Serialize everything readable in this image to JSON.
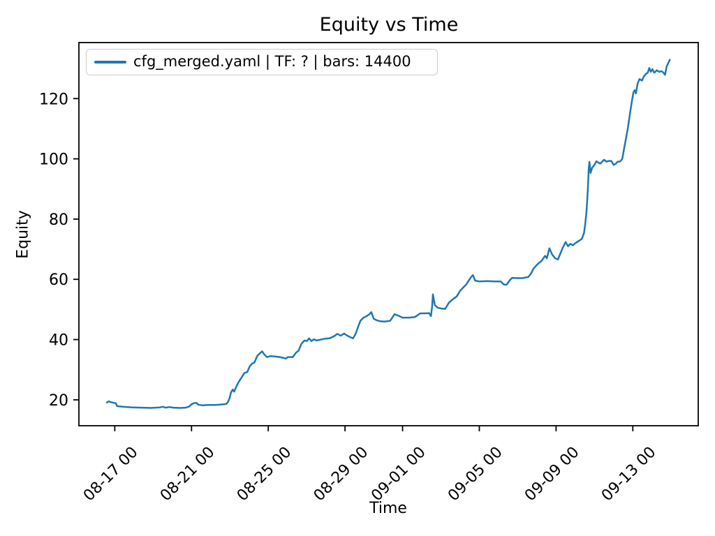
{
  "chart_data": {
    "type": "line",
    "title": "Equity vs Time",
    "xlabel": "Time",
    "ylabel": "Equity",
    "grid": false,
    "legend_position": "upper left",
    "x_unit": "days since 08-16 00:00, labels shown as MM-DD HH",
    "xlim": [
      -0.87,
      31.41
    ],
    "ylim": [
      11.4,
      138.6
    ],
    "yticks": [
      20,
      40,
      60,
      80,
      100,
      120
    ],
    "xticks": [
      {
        "x": 1,
        "label": "08-17 00"
      },
      {
        "x": 5,
        "label": "08-21 00"
      },
      {
        "x": 9,
        "label": "08-25 00"
      },
      {
        "x": 13,
        "label": "08-29 00"
      },
      {
        "x": 16,
        "label": "09-01 00"
      },
      {
        "x": 20,
        "label": "09-05 00"
      },
      {
        "x": 24,
        "label": "09-09 00"
      },
      {
        "x": 28,
        "label": "09-13 00"
      }
    ],
    "colors": {
      "line": "#1f77b4",
      "spine": "#000000",
      "text": "#000000",
      "legend_border": "#cccccc",
      "background": "#ffffff"
    },
    "series": [
      {
        "name": "cfg_merged.yaml | TF: ? | bars: 14400",
        "color": "#1f77b4",
        "points": [
          [
            0.59,
            19.1
          ],
          [
            0.68,
            19.5
          ],
          [
            0.8,
            19.2
          ],
          [
            0.95,
            19.0
          ],
          [
            1.05,
            18.9
          ],
          [
            1.12,
            17.9
          ],
          [
            1.4,
            17.7
          ],
          [
            1.9,
            17.5
          ],
          [
            2.4,
            17.4
          ],
          [
            2.9,
            17.3
          ],
          [
            3.35,
            17.5
          ],
          [
            3.5,
            17.7
          ],
          [
            3.65,
            17.4
          ],
          [
            3.85,
            17.6
          ],
          [
            4.05,
            17.4
          ],
          [
            4.4,
            17.3
          ],
          [
            4.7,
            17.4
          ],
          [
            4.88,
            17.8
          ],
          [
            5.0,
            18.5
          ],
          [
            5.12,
            18.9
          ],
          [
            5.25,
            19.0
          ],
          [
            5.35,
            18.4
          ],
          [
            5.55,
            18.2
          ],
          [
            5.85,
            18.3
          ],
          [
            6.2,
            18.3
          ],
          [
            6.5,
            18.4
          ],
          [
            6.8,
            18.6
          ],
          [
            6.9,
            19.3
          ],
          [
            6.98,
            20.5
          ],
          [
            7.06,
            22.5
          ],
          [
            7.15,
            23.4
          ],
          [
            7.22,
            22.7
          ],
          [
            7.33,
            24.3
          ],
          [
            7.45,
            25.8
          ],
          [
            7.55,
            26.9
          ],
          [
            7.65,
            27.8
          ],
          [
            7.75,
            28.9
          ],
          [
            7.9,
            29.2
          ],
          [
            8.03,
            31.1
          ],
          [
            8.15,
            32.0
          ],
          [
            8.28,
            32.4
          ],
          [
            8.43,
            34.6
          ],
          [
            8.57,
            35.5
          ],
          [
            8.68,
            36.1
          ],
          [
            8.8,
            35.0
          ],
          [
            8.93,
            34.2
          ],
          [
            9.1,
            34.5
          ],
          [
            9.35,
            34.4
          ],
          [
            9.6,
            34.2
          ],
          [
            9.8,
            33.9
          ],
          [
            9.92,
            33.7
          ],
          [
            10.02,
            34.2
          ],
          [
            10.28,
            34.2
          ],
          [
            10.45,
            35.7
          ],
          [
            10.58,
            36.3
          ],
          [
            10.72,
            38.5
          ],
          [
            10.88,
            39.7
          ],
          [
            11.02,
            39.5
          ],
          [
            11.12,
            40.4
          ],
          [
            11.25,
            39.5
          ],
          [
            11.38,
            40.1
          ],
          [
            11.52,
            39.7
          ],
          [
            11.72,
            40.0
          ],
          [
            11.95,
            40.3
          ],
          [
            12.2,
            40.4
          ],
          [
            12.45,
            41.2
          ],
          [
            12.6,
            41.9
          ],
          [
            12.78,
            41.3
          ],
          [
            12.95,
            42.0
          ],
          [
            13.12,
            41.3
          ],
          [
            13.28,
            40.8
          ],
          [
            13.42,
            40.4
          ],
          [
            13.57,
            42.2
          ],
          [
            13.68,
            44.2
          ],
          [
            13.8,
            46.2
          ],
          [
            13.95,
            47.2
          ],
          [
            14.1,
            47.7
          ],
          [
            14.25,
            48.3
          ],
          [
            14.37,
            49.1
          ],
          [
            14.5,
            46.9
          ],
          [
            14.65,
            46.4
          ],
          [
            14.82,
            46.1
          ],
          [
            15.05,
            46.0
          ],
          [
            15.35,
            46.2
          ],
          [
            15.58,
            48.4
          ],
          [
            15.72,
            48.1
          ],
          [
            16.0,
            47.3
          ],
          [
            16.35,
            47.3
          ],
          [
            16.65,
            47.5
          ],
          [
            16.92,
            48.7
          ],
          [
            17.18,
            48.7
          ],
          [
            17.38,
            48.8
          ],
          [
            17.48,
            47.8
          ],
          [
            17.54,
            51.0
          ],
          [
            17.58,
            55.0
          ],
          [
            17.68,
            51.5
          ],
          [
            17.82,
            50.6
          ],
          [
            18.02,
            50.3
          ],
          [
            18.22,
            50.2
          ],
          [
            18.42,
            52.3
          ],
          [
            18.62,
            53.4
          ],
          [
            18.82,
            54.3
          ],
          [
            19.0,
            56.2
          ],
          [
            19.15,
            57.2
          ],
          [
            19.32,
            58.3
          ],
          [
            19.47,
            59.8
          ],
          [
            19.6,
            61.0
          ],
          [
            19.67,
            61.4
          ],
          [
            19.78,
            59.6
          ],
          [
            20.0,
            59.3
          ],
          [
            20.4,
            59.4
          ],
          [
            20.8,
            59.3
          ],
          [
            21.12,
            59.3
          ],
          [
            21.27,
            58.3
          ],
          [
            21.42,
            58.2
          ],
          [
            21.6,
            59.8
          ],
          [
            21.72,
            60.5
          ],
          [
            21.95,
            60.4
          ],
          [
            22.25,
            60.4
          ],
          [
            22.56,
            60.8
          ],
          [
            22.7,
            62.0
          ],
          [
            22.82,
            63.5
          ],
          [
            23.03,
            65.0
          ],
          [
            23.25,
            66.2
          ],
          [
            23.43,
            67.8
          ],
          [
            23.52,
            67.0
          ],
          [
            23.65,
            70.3
          ],
          [
            23.8,
            68.2
          ],
          [
            23.95,
            67.0
          ],
          [
            24.1,
            66.6
          ],
          [
            24.25,
            69.0
          ],
          [
            24.35,
            70.5
          ],
          [
            24.5,
            72.4
          ],
          [
            24.62,
            71.0
          ],
          [
            24.75,
            71.8
          ],
          [
            24.88,
            71.3
          ],
          [
            25.0,
            72.0
          ],
          [
            25.2,
            72.8
          ],
          [
            25.35,
            73.5
          ],
          [
            25.46,
            75.5
          ],
          [
            25.52,
            78.5
          ],
          [
            25.58,
            82.0
          ],
          [
            25.63,
            87.0
          ],
          [
            25.67,
            92.0
          ],
          [
            25.7,
            96.6
          ],
          [
            25.74,
            99.0
          ],
          [
            25.8,
            95.3
          ],
          [
            25.88,
            97.0
          ],
          [
            26.0,
            98.0
          ],
          [
            26.1,
            99.2
          ],
          [
            26.2,
            98.8
          ],
          [
            26.3,
            98.4
          ],
          [
            26.42,
            99.2
          ],
          [
            26.5,
            99.7
          ],
          [
            26.62,
            99.1
          ],
          [
            26.75,
            99.3
          ],
          [
            26.88,
            99.3
          ],
          [
            27.0,
            98.0
          ],
          [
            27.1,
            98.3
          ],
          [
            27.2,
            99.0
          ],
          [
            27.35,
            99.2
          ],
          [
            27.45,
            100.0
          ],
          [
            27.55,
            103.5
          ],
          [
            27.65,
            107.0
          ],
          [
            27.75,
            110.5
          ],
          [
            27.85,
            115.0
          ],
          [
            27.95,
            119.0
          ],
          [
            28.03,
            122.0
          ],
          [
            28.1,
            122.8
          ],
          [
            28.16,
            121.7
          ],
          [
            28.25,
            125.0
          ],
          [
            28.35,
            126.5
          ],
          [
            28.48,
            126.0
          ],
          [
            28.58,
            127.4
          ],
          [
            28.7,
            128.3
          ],
          [
            28.78,
            128.6
          ],
          [
            28.86,
            130.2
          ],
          [
            28.94,
            128.9
          ],
          [
            29.02,
            129.8
          ],
          [
            29.12,
            128.6
          ],
          [
            29.25,
            129.4
          ],
          [
            29.38,
            128.9
          ],
          [
            29.5,
            129.1
          ],
          [
            29.6,
            128.6
          ],
          [
            29.68,
            127.9
          ],
          [
            29.76,
            130.6
          ],
          [
            29.85,
            131.8
          ],
          [
            29.93,
            132.9
          ]
        ]
      }
    ]
  }
}
